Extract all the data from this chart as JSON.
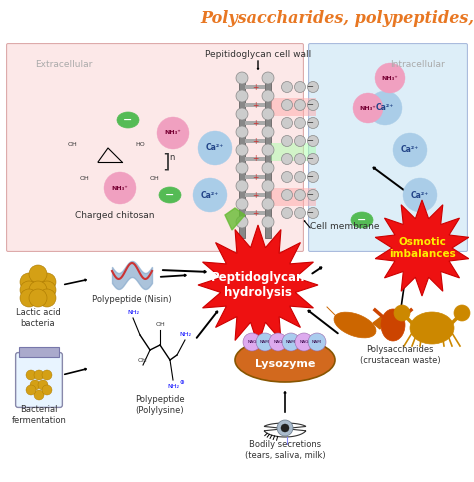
{
  "title": "Polysaccharides, polypeptides, and enzymes",
  "title_color": "#E87722",
  "bg_color": "#ffffff",
  "extracellular_bg": "#fce8e8",
  "intracellular_bg": "#ddeef8",
  "pepwall_label": "Pepitidoglycan cell wall",
  "cellmem_label": "Cell membrane",
  "extracellular_label": "Extracellular",
  "intracellular_label": "Intracellular",
  "charged_chitosan_label": "Charged chitosan",
  "peptidoglycan_hydrolysis_label": "Peptidoglycan\nhydrolysis",
  "osmotic_imbalances_label": "Osmotic\nimbalances",
  "lysozyme_label": "Lysozyme",
  "bodily_label": "Bodily secretions\n(tears, saliva, milk)",
  "polysaccharides_label": "Polysaccharides\n(crustacean waste)",
  "lactic_acid_label": "Lactic acid\nbacteria",
  "polypeptide_nisin_label": "Polypeptide (Nisin)",
  "bacterial_fermentation_label": "Bacterial\nfermentation",
  "polypeptide_polylysine_label": "Polypeptide\n(Polylysine)",
  "ca2plus_color": "#aacde8",
  "nh3plus_color": "#f0a0c0",
  "minus_color": "#55bb55",
  "lysozyme_color": "#d2691e",
  "arrow_color": "#111111"
}
